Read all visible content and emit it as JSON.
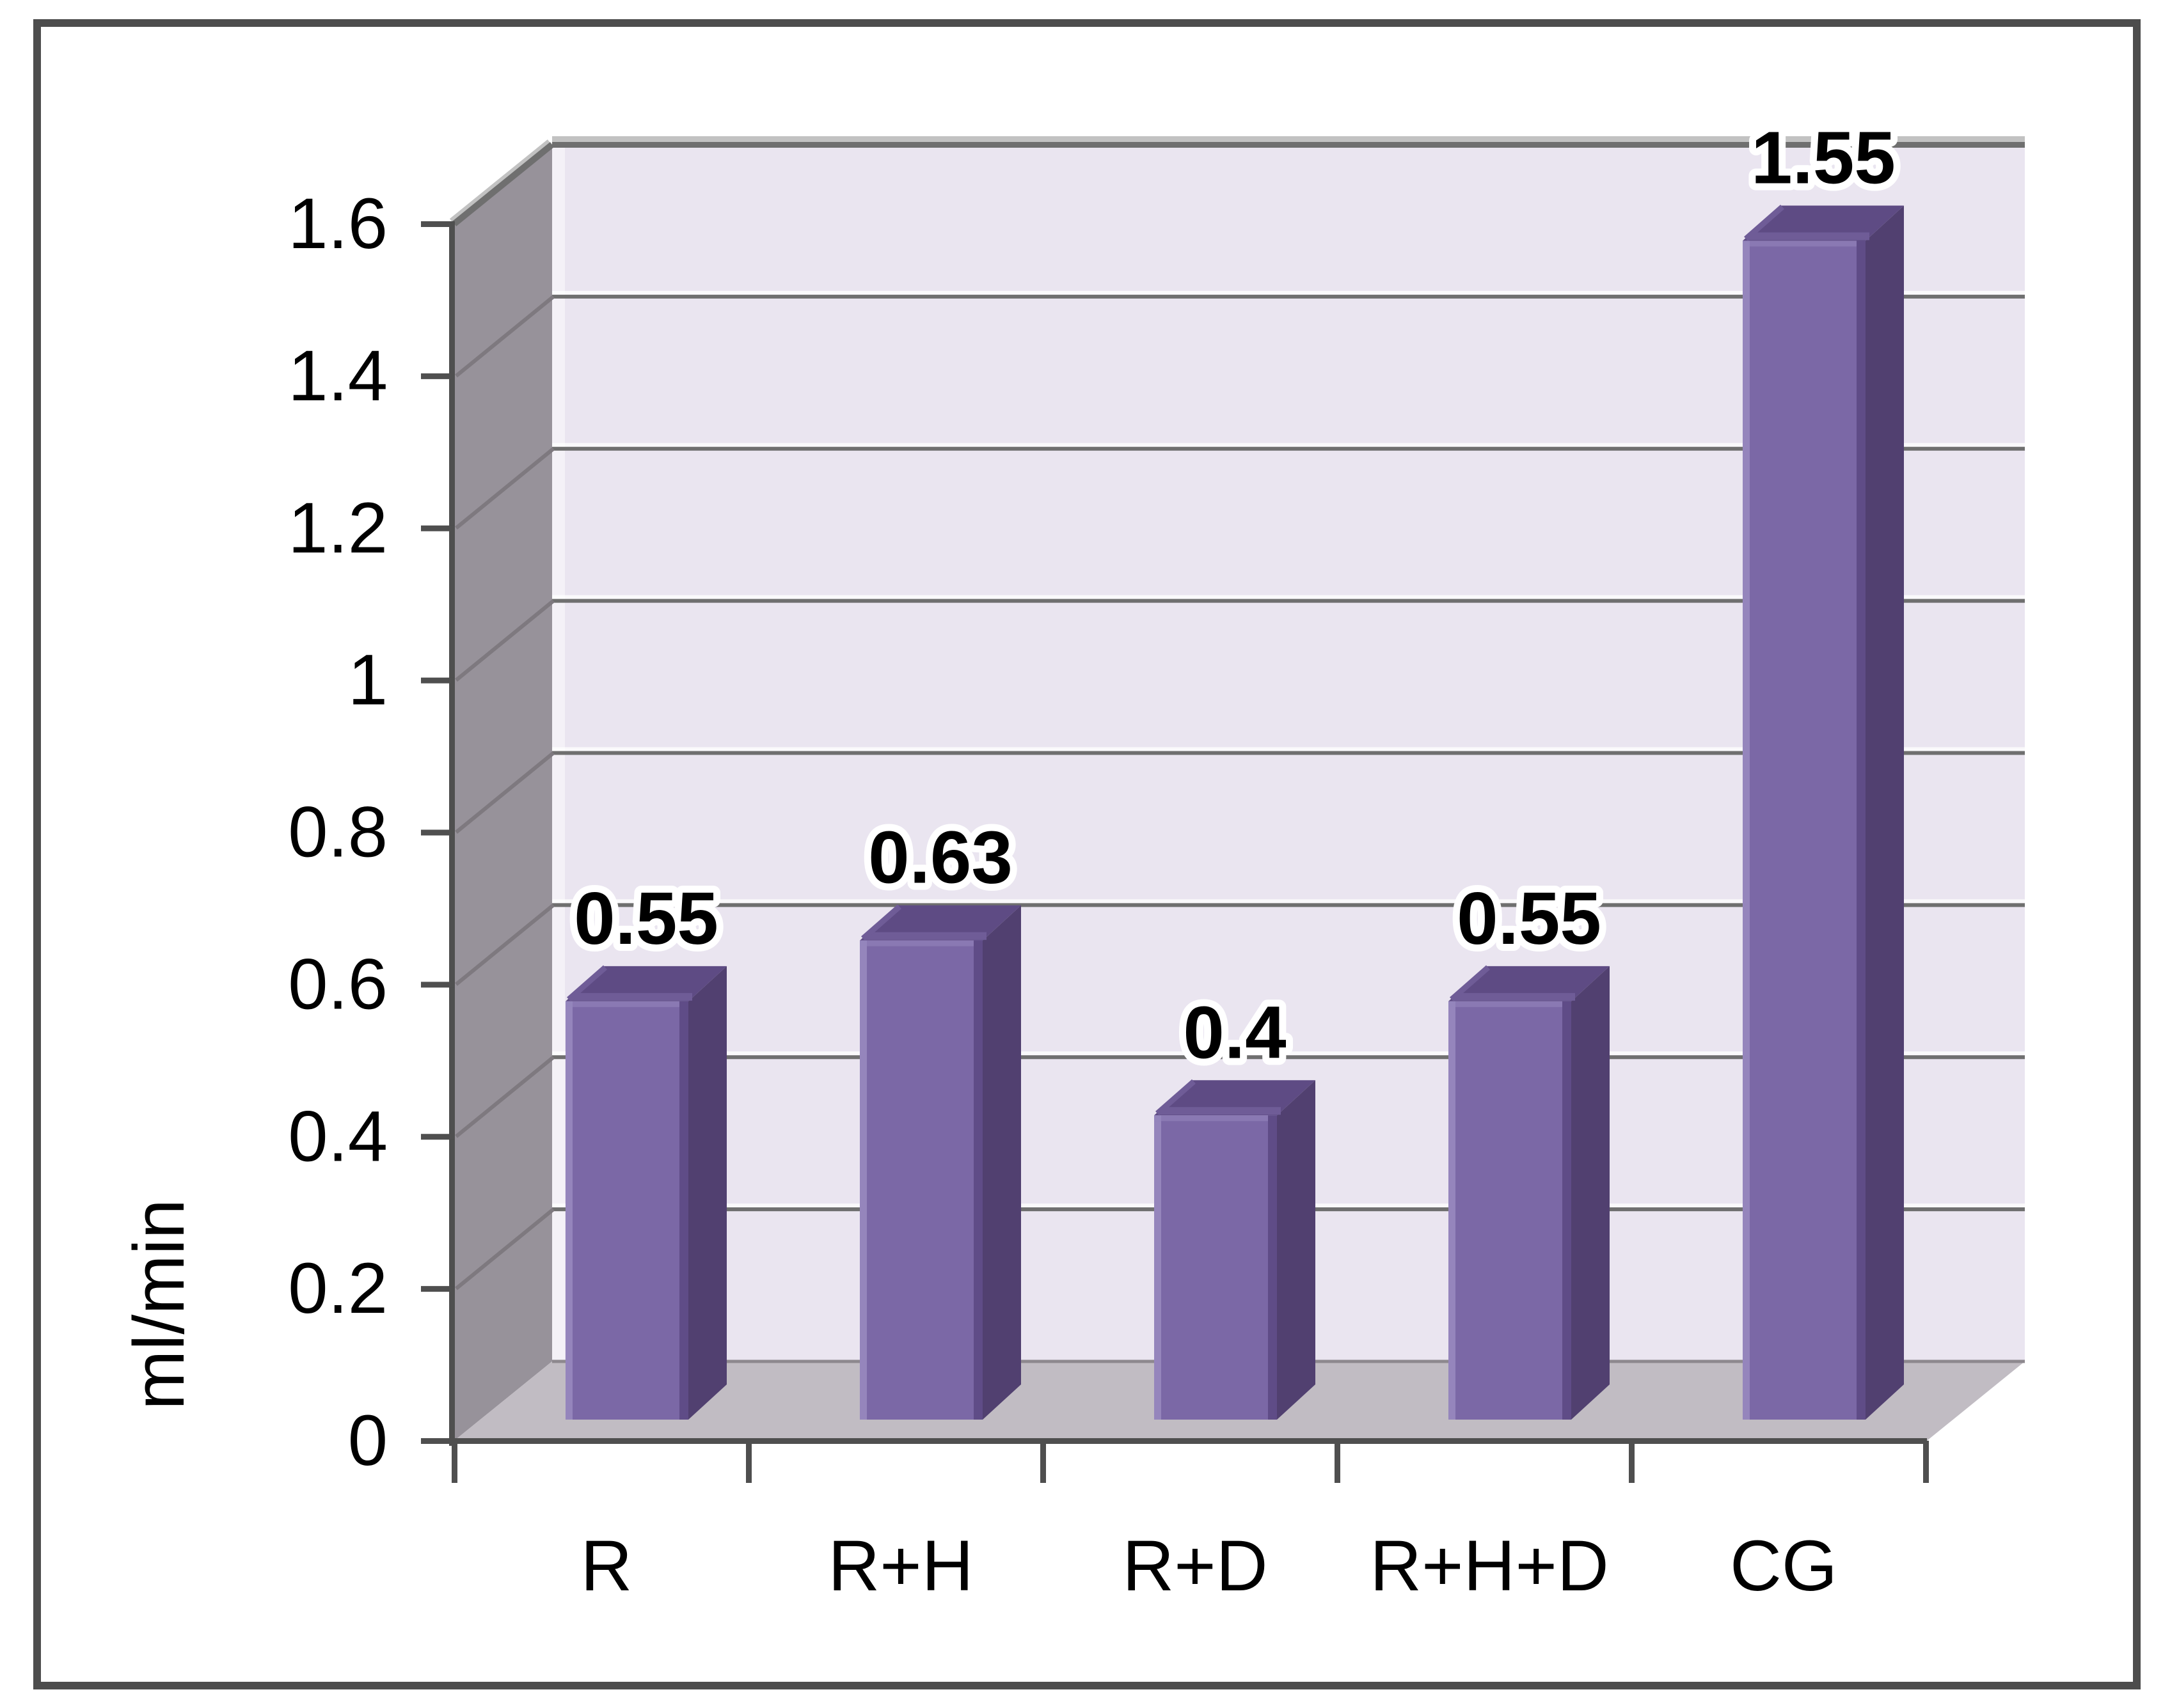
{
  "chart_data": {
    "type": "bar",
    "projection": "3d",
    "title": "",
    "categories": [
      "R",
      "R+H",
      "R+D",
      "R+H+D",
      "CG"
    ],
    "values": [
      0.55,
      0.63,
      0.4,
      0.55,
      1.55
    ],
    "value_labels": [
      "0.55",
      "0.63",
      "0.4",
      "0.55",
      "1.55"
    ],
    "series": [
      {
        "name": "ml/min",
        "values": [
          0.55,
          0.63,
          0.4,
          0.55,
          1.55
        ]
      }
    ],
    "xlabel": "",
    "ylabel": "ml/min",
    "ylim": [
      0,
      1.6
    ],
    "ytick_values": [
      0,
      0.2,
      0.4,
      0.6,
      0.8,
      1,
      1.2,
      1.4,
      1.6
    ],
    "ytick_labels": [
      "0",
      "0.2",
      "0.4",
      "0.6",
      "0.8",
      "1",
      "1.2",
      "1.4",
      "1.6"
    ],
    "grid": true,
    "legend": false,
    "colors": {
      "bar_front": "#7B68A6",
      "bar_front_light": "#9585BC",
      "bar_front_dark": "#5F4C87",
      "bar_top": "#5E4B84",
      "bar_top_light": "#6F5C97",
      "bar_side": "#514070",
      "back_wall": "#EAE5F0",
      "back_wall_edge_light": "#F4F1F7",
      "side_wall": "#97929A",
      "floor": "#C1BCC3",
      "floor_back_edge": "#8D888E",
      "gridline": "#6F6F6F",
      "gridline_highlight": "#FFFFFF",
      "wall_top_light": "#C2C2C2",
      "wall_diag_line": "#7E797F",
      "axis": "#4F4F4F",
      "frame_border": "#4D4D4D",
      "label_text": "#000000",
      "background": "#FFFFFF"
    }
  }
}
